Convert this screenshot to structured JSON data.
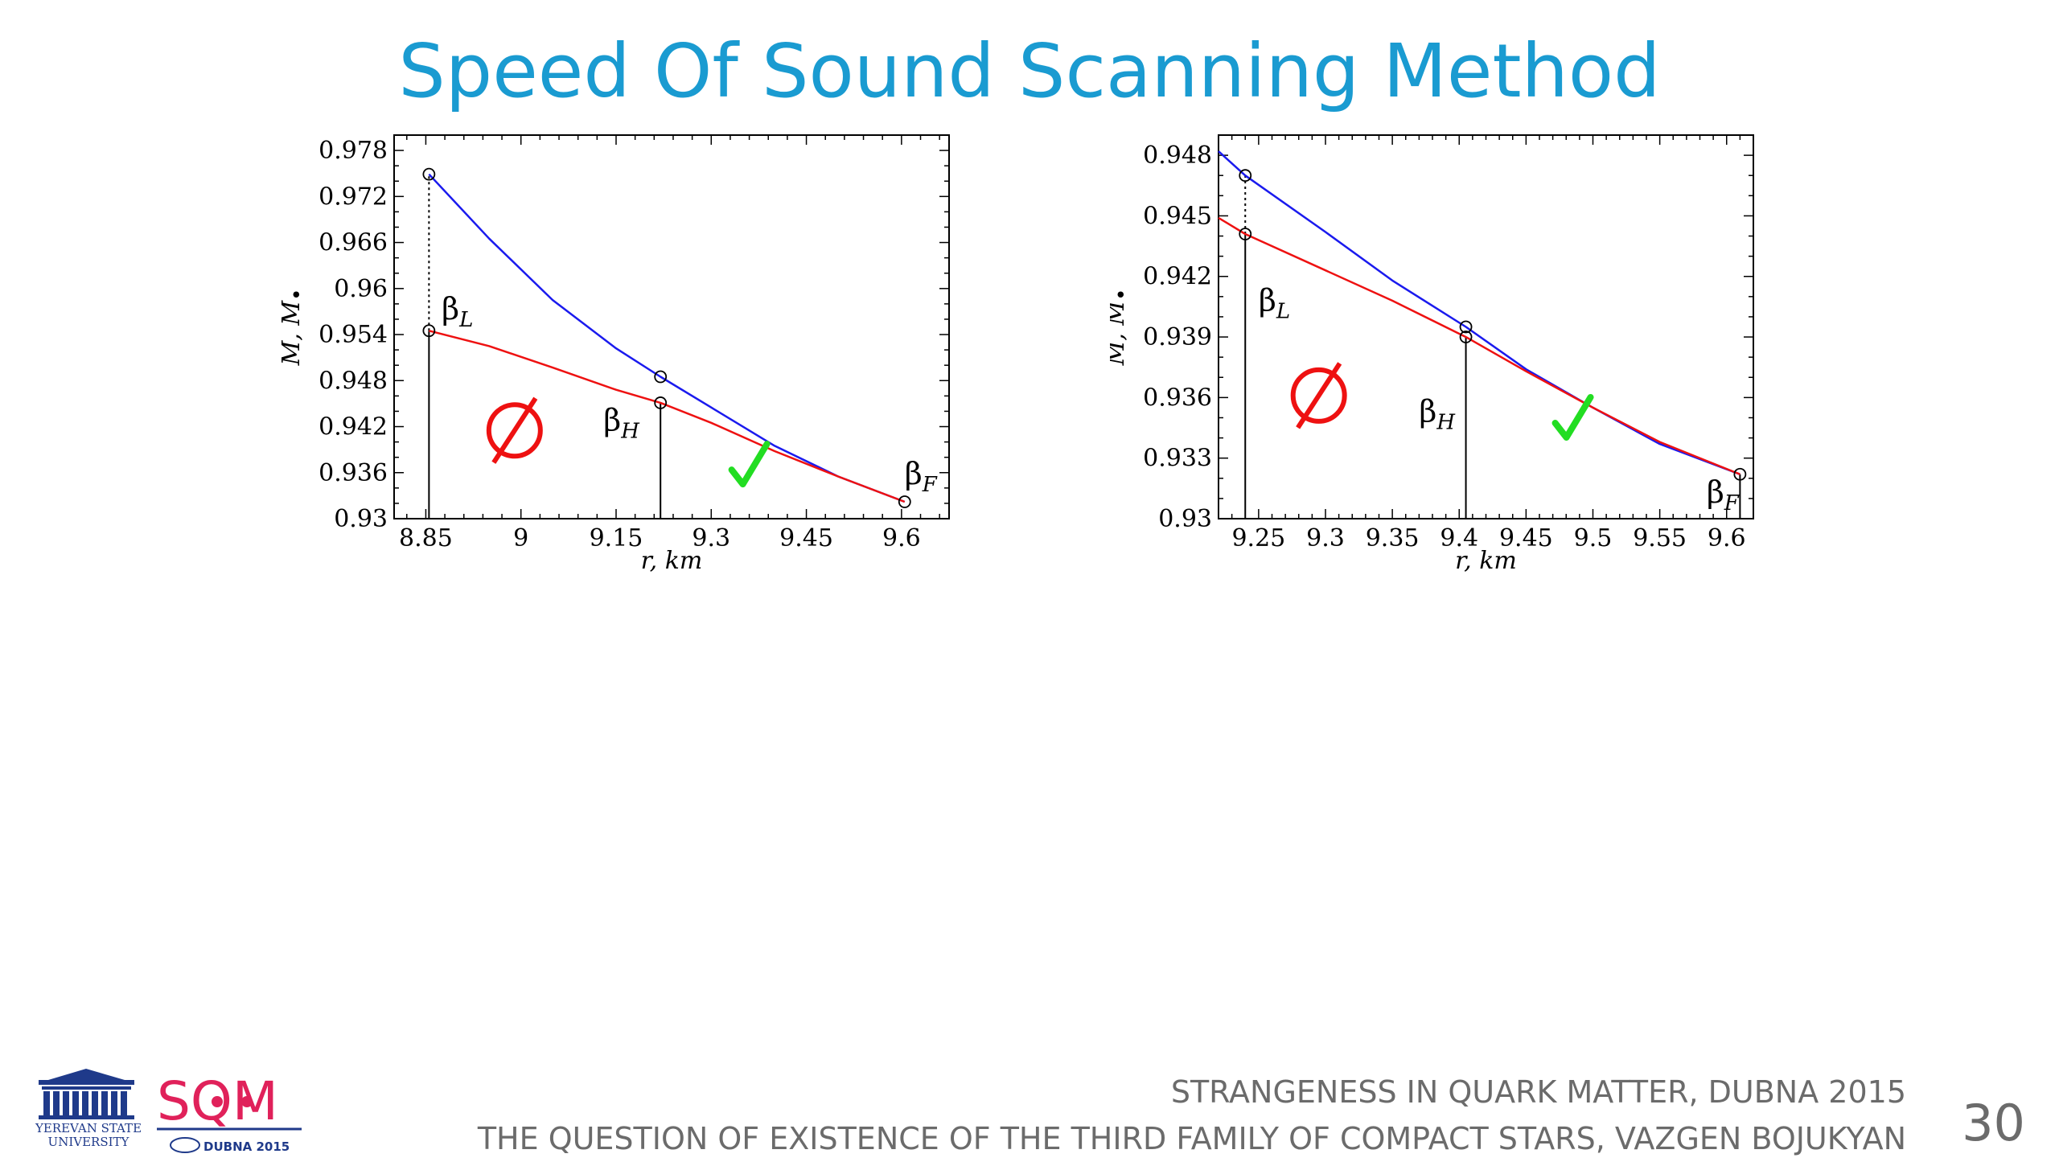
{
  "slide": {
    "title": "Speed Of Sound Scanning Method",
    "footer_line1": "STRANGENESS IN QUARK MATTER,  DUBNA 2015",
    "footer_line2": "THE QUESTION OF EXISTENCE OF THE THIRD FAMILY OF COMPACT STARS, VAZGEN BOJUKYAN",
    "page_number": "30",
    "logo_university_line1": "YEREVAN STATE",
    "logo_university_line2": "UNIVERSITY",
    "logo_conf_text": "SQM",
    "logo_conf_sub": "DUBNA 2015"
  },
  "colors": {
    "title": "#1a9bd1",
    "blue_curve": "#1a1aee",
    "red_curve": "#ee1111",
    "check": "#22dd22",
    "empty_set": "#ee1111"
  },
  "chart_data": [
    {
      "type": "line",
      "xlabel": "r, km",
      "ylabel": "M, M",
      "ylabel_sub": "•",
      "xlim": [
        8.8,
        9.675
      ],
      "ylim": [
        0.93,
        0.98
      ],
      "xticks": [
        8.85,
        9,
        9.15,
        9.3,
        9.45,
        9.6
      ],
      "xtick_labels": [
        "8.85",
        "9",
        "9.15",
        "9.3",
        "9.45",
        "9.6"
      ],
      "yticks": [
        0.93,
        0.936,
        0.942,
        0.948,
        0.954,
        0.96,
        0.966,
        0.972,
        0.978
      ],
      "ytick_labels": [
        "0.93",
        "0.936",
        "0.942",
        "0.948",
        "0.954",
        "0.96",
        "0.966",
        "0.972",
        "0.978"
      ],
      "series": [
        {
          "color": "#1a1aee",
          "x": [
            8.855,
            8.95,
            9.05,
            9.15,
            9.22,
            9.3,
            9.4,
            9.5,
            9.605
          ],
          "y": [
            0.9749,
            0.9665,
            0.9585,
            0.9522,
            0.9485,
            0.9445,
            0.9395,
            0.9355,
            0.9322
          ]
        },
        {
          "color": "#ee1111",
          "x": [
            8.855,
            8.95,
            9.05,
            9.15,
            9.22,
            9.3,
            9.4,
            9.5,
            9.605
          ],
          "y": [
            0.9545,
            0.9525,
            0.9497,
            0.9468,
            0.9451,
            0.9425,
            0.9388,
            0.9355,
            0.9322
          ]
        }
      ],
      "markers": [
        {
          "x": 8.855,
          "y": 0.9749
        },
        {
          "x": 8.855,
          "y": 0.9545
        },
        {
          "x": 9.22,
          "y": 0.9485
        },
        {
          "x": 9.22,
          "y": 0.9451
        },
        {
          "x": 9.605,
          "y": 0.9322
        }
      ],
      "dotted_verticals": [
        {
          "x": 8.855,
          "y1": 0.9545,
          "y2": 0.9749
        }
      ],
      "solid_verticals": [
        {
          "x": 8.855,
          "y1": 0.93,
          "y2": 0.9545
        },
        {
          "x": 9.22,
          "y1": 0.93,
          "y2": 0.9451
        }
      ],
      "labels": [
        {
          "text": "β",
          "sub": "L",
          "x": 8.875,
          "y": 0.956
        },
        {
          "text": "β",
          "sub": "H",
          "x": 9.13,
          "y": 0.9415
        },
        {
          "text": "β",
          "sub": "F",
          "x": 9.605,
          "y": 0.9345
        }
      ],
      "empty_set": {
        "x": 8.99,
        "y": 0.9415
      },
      "check": {
        "x": 9.36,
        "y": 0.9368
      }
    },
    {
      "type": "line",
      "xlabel": "r, km",
      "ylabel": "M, M",
      "ylabel_sub": "•",
      "xlim": [
        9.22,
        9.62
      ],
      "ylim": [
        0.93,
        0.949
      ],
      "xticks": [
        9.25,
        9.3,
        9.35,
        9.4,
        9.45,
        9.5,
        9.55,
        9.6
      ],
      "xtick_labels": [
        "9.25",
        "9.3",
        "9.35",
        "9.4",
        "9.45",
        "9.5",
        "9.55",
        "9.6"
      ],
      "yticks": [
        0.93,
        0.933,
        0.936,
        0.939,
        0.942,
        0.945,
        0.948
      ],
      "ytick_labels": [
        "0.93",
        "0.933",
        "0.936",
        "0.939",
        "0.942",
        "0.945",
        "0.948"
      ],
      "series": [
        {
          "color": "#1a1aee",
          "x": [
            9.22,
            9.24,
            9.3,
            9.35,
            9.405,
            9.45,
            9.5,
            9.55,
            9.61
          ],
          "y": [
            0.9482,
            0.947,
            0.9442,
            0.9418,
            0.9395,
            0.9374,
            0.9355,
            0.9337,
            0.9322
          ]
        },
        {
          "color": "#ee1111",
          "x": [
            9.22,
            9.24,
            9.3,
            9.35,
            9.405,
            9.45,
            9.5,
            9.55,
            9.61
          ],
          "y": [
            0.9449,
            0.9441,
            0.9423,
            0.9408,
            0.939,
            0.9373,
            0.9355,
            0.9338,
            0.9322
          ]
        }
      ],
      "markers": [
        {
          "x": 9.24,
          "y": 0.947
        },
        {
          "x": 9.24,
          "y": 0.9441
        },
        {
          "x": 9.405,
          "y": 0.9395
        },
        {
          "x": 9.405,
          "y": 0.939
        },
        {
          "x": 9.61,
          "y": 0.9322
        }
      ],
      "dotted_verticals": [
        {
          "x": 9.24,
          "y1": 0.9441,
          "y2": 0.947
        }
      ],
      "solid_verticals": [
        {
          "x": 9.24,
          "y1": 0.93,
          "y2": 0.9441
        },
        {
          "x": 9.405,
          "y1": 0.93,
          "y2": 0.939
        },
        {
          "x": 9.61,
          "y1": 0.93,
          "y2": 0.9322
        }
      ],
      "labels": [
        {
          "text": "β",
          "sub": "L",
          "x": 9.25,
          "y": 0.9403
        },
        {
          "text": "β",
          "sub": "H",
          "x": 9.37,
          "y": 0.9348
        },
        {
          "text": "β",
          "sub": "F",
          "x": 9.585,
          "y": 0.9308
        }
      ],
      "empty_set": {
        "x": 9.295,
        "y": 0.9361
      },
      "check": {
        "x": 9.485,
        "y": 0.9349
      }
    }
  ]
}
